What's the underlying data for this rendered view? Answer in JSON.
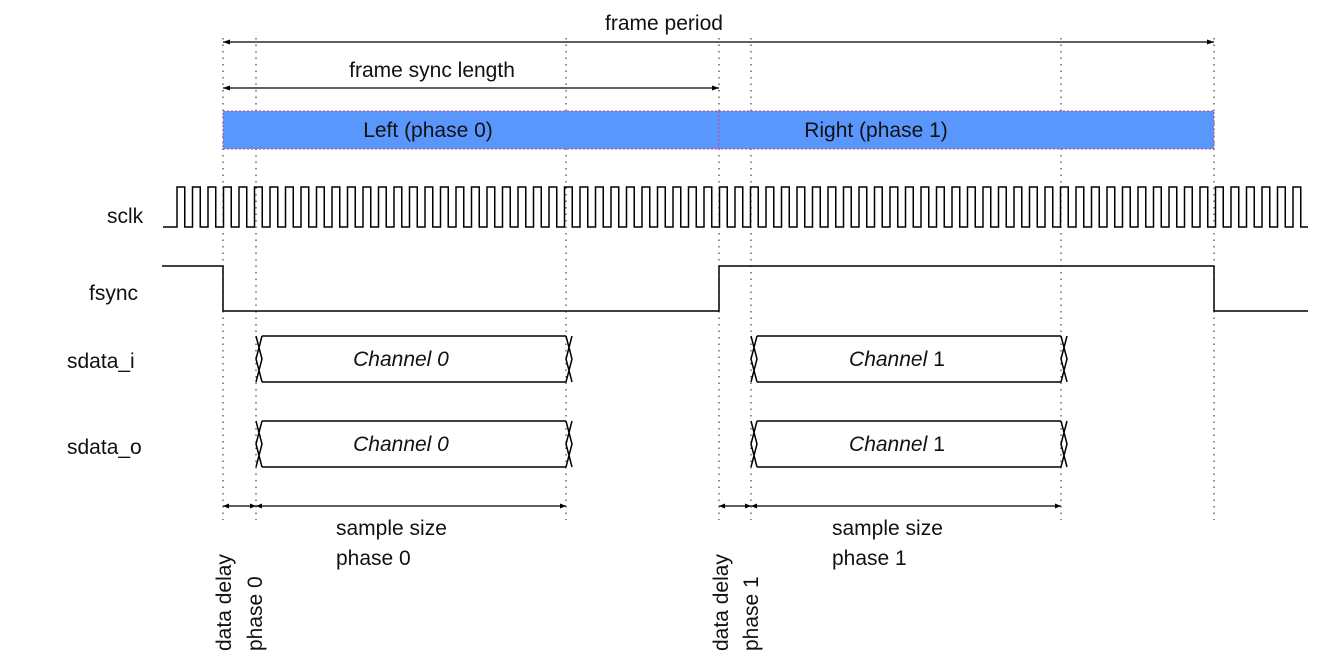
{
  "labels": {
    "frame_period": "frame period",
    "frame_sync_length": "frame sync length",
    "left_phase": "Left (phase 0)",
    "right_phase": "Right (phase 1)",
    "sample_size_0_line1": "sample size",
    "sample_size_0_line2": "phase 0",
    "sample_size_1_line1": "sample size",
    "sample_size_1_line2": "phase 1",
    "data_delay_0_line1": "data delay",
    "data_delay_0_line2": "phase 0",
    "data_delay_1_line1": "data delay",
    "data_delay_1_line2": "phase 1"
  },
  "signals": {
    "sclk": "sclk",
    "fsync": "fsync",
    "sdata_i": "sdata_i",
    "sdata_o": "sdata_o"
  },
  "channels": {
    "ch0_prefix": "Channel 0",
    "ch1_prefix": "Channel",
    "ch1_number": "1"
  },
  "colors": {
    "phase_bar": "#5a97fc",
    "phase_bar_border": "#d04080"
  }
}
